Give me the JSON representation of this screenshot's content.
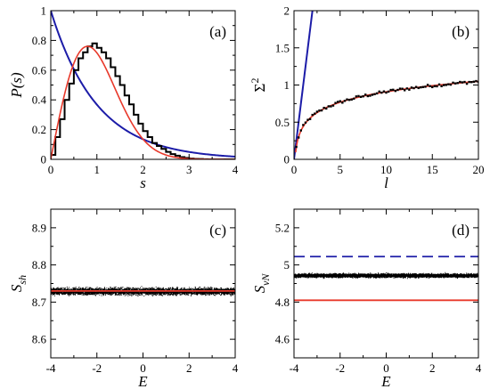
{
  "chart_data": [
    {
      "id": "a",
      "panel_label": "(a)",
      "type": "line",
      "xlabel": "s",
      "ylabel": "P(s)",
      "xlim": [
        0,
        4
      ],
      "ylim": [
        0,
        1
      ],
      "xticks": [
        0,
        1,
        2,
        3,
        4
      ],
      "yticks": [
        0,
        0.2,
        0.4,
        0.6,
        0.8,
        1
      ],
      "colors": {
        "histogram": "#000000",
        "wigner": "#e8392b",
        "poisson": "#1c1ca8"
      },
      "histogram": {
        "bin_width": 0.1,
        "values": [
          0.03,
          0.15,
          0.27,
          0.4,
          0.51,
          0.6,
          0.68,
          0.72,
          0.76,
          0.78,
          0.75,
          0.72,
          0.68,
          0.62,
          0.56,
          0.5,
          0.43,
          0.37,
          0.3,
          0.24,
          0.19,
          0.15,
          0.11,
          0.09,
          0.07,
          0.05,
          0.035,
          0.025,
          0.015,
          0.01,
          0.005,
          0.003,
          0.002,
          0.001,
          0,
          0,
          0,
          0,
          0,
          0
        ]
      },
      "curves": [
        {
          "name": "wigner_surmise",
          "kind": "(pi/2) s exp(-pi s^2/4)"
        },
        {
          "name": "poisson",
          "kind": "exp(-s)"
        }
      ]
    },
    {
      "id": "b",
      "panel_label": "(b)",
      "type": "line",
      "xlabel": "l",
      "ylabel": "Σ²",
      "xlim": [
        0,
        20
      ],
      "ylim": [
        0,
        2
      ],
      "xticks": [
        0,
        5,
        10,
        15,
        20
      ],
      "yticks": [
        0,
        0.5,
        1,
        1.5,
        2
      ],
      "colors": {
        "points": "#000000",
        "goe": "#e8392b",
        "poisson": "#1c1ca8"
      },
      "points": {
        "x_start": 0.25,
        "x_end": 20,
        "x_step": 0.25,
        "base": "goe",
        "scatter": 0.02
      },
      "curves": [
        {
          "name": "goe_number_variance",
          "kind": "(2/pi^2)(ln(2 pi l)+gamma+1-pi^2/8)"
        },
        {
          "name": "poisson_number_variance",
          "kind": "l"
        }
      ]
    },
    {
      "id": "c",
      "panel_label": "(c)",
      "type": "scatter",
      "xlabel": "E",
      "ylabel": "S_sh",
      "xlim": [
        -4,
        4
      ],
      "ylim": [
        8.55,
        8.95
      ],
      "xticks": [
        -4,
        -2,
        0,
        2,
        4
      ],
      "yticks": [
        8.6,
        8.7,
        8.8,
        8.9
      ],
      "colors": {
        "points": "#000000",
        "reference": "#e8392b"
      },
      "band": {
        "mean": 8.73,
        "spread": 0.011,
        "count": 5000
      },
      "reference_lines": [
        8.73
      ]
    },
    {
      "id": "d",
      "panel_label": "(d)",
      "type": "scatter",
      "xlabel": "E",
      "ylabel": "S_vN",
      "xlim": [
        -4,
        4
      ],
      "ylim": [
        4.5,
        5.3
      ],
      "xticks": [
        -4,
        -2,
        0,
        2,
        4
      ],
      "yticks": [
        4.6,
        4.8,
        5.0,
        5.2
      ],
      "colors": {
        "points": "#000000",
        "lower": "#e8392b",
        "upper": "#1c1ca8"
      },
      "band": {
        "mean": 4.945,
        "spread": 0.012,
        "count": 5000
      },
      "reference_lines": [
        {
          "value": 4.81,
          "style": "solid",
          "color_key": "lower"
        },
        {
          "value": 5.045,
          "style": "dashed",
          "color_key": "upper"
        }
      ]
    }
  ]
}
